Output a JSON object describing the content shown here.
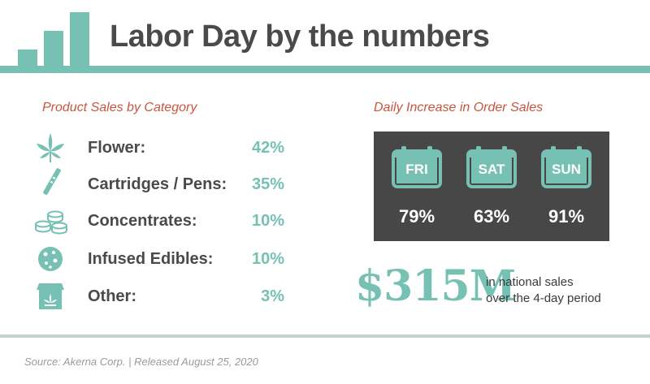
{
  "header": {
    "title": "Labor Day by the numbers"
  },
  "products": {
    "section_title": "Product Sales by Category",
    "items": [
      {
        "label": "Flower:",
        "value": "42%",
        "icon": "cannabis-leaf-icon"
      },
      {
        "label": "Cartridges / Pens:",
        "value": "35%",
        "icon": "vape-pen-icon"
      },
      {
        "label": "Concentrates:",
        "value": "10%",
        "icon": "concentrate-jars-icon"
      },
      {
        "label": "Infused Edibles:",
        "value": "10%",
        "icon": "cookie-icon"
      },
      {
        "label": "Other:",
        "value": "3%",
        "icon": "dispensary-storefront-icon"
      }
    ]
  },
  "daily": {
    "section_title": "Daily Increase in Order Sales",
    "days": [
      {
        "name": "FRI",
        "value": "79%"
      },
      {
        "name": "SAT",
        "value": "63%"
      },
      {
        "name": "SUN",
        "value": "91%"
      }
    ]
  },
  "national": {
    "amount": "$315M",
    "caption_line1": "in national sales",
    "caption_line2": "over the 4-day period"
  },
  "footer": {
    "source": "Source: Akerna Corp. | Released August 25, 2020"
  },
  "colors": {
    "accent": "#76c1b4",
    "section_title": "#c8553d",
    "panel": "#474747",
    "text": "#4a4a4a"
  },
  "chart_data": [
    {
      "type": "table",
      "title": "Product Sales by Category",
      "categories": [
        "Flower",
        "Cartridges / Pens",
        "Concentrates",
        "Infused Edibles",
        "Other"
      ],
      "values": [
        42,
        35,
        10,
        10,
        3
      ],
      "unit": "%"
    },
    {
      "type": "table",
      "title": "Daily Increase in Order Sales",
      "categories": [
        "FRI",
        "SAT",
        "SUN"
      ],
      "values": [
        79,
        63,
        91
      ],
      "unit": "%"
    }
  ]
}
